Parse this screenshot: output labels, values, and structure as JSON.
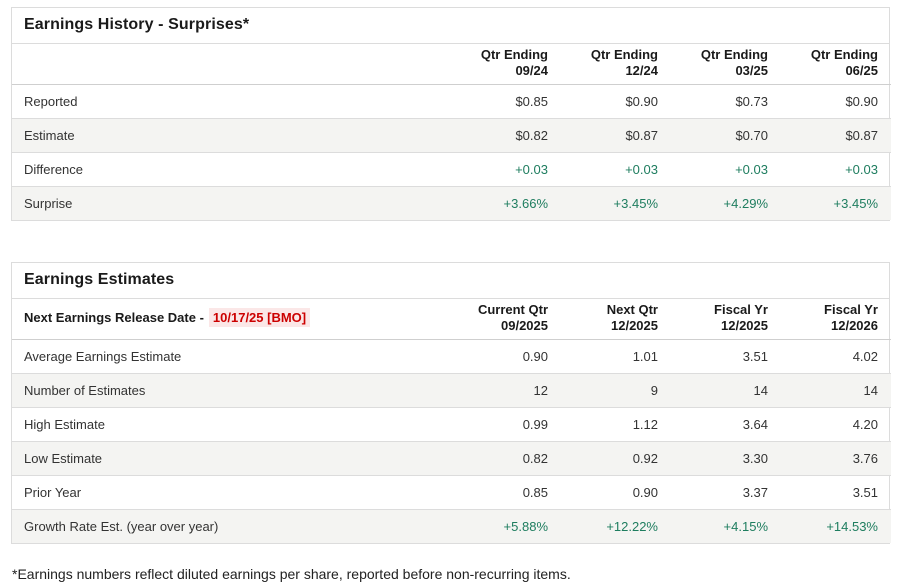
{
  "colors": {
    "green": "#1e7d5f",
    "red": "#cc0000",
    "red_bg": "#fbe7e7",
    "row_alt": "#f4f4f2",
    "border": "#dcdcdc"
  },
  "history": {
    "title": "Earnings History - Surprises*",
    "columns": [
      {
        "line1": "Qtr Ending",
        "line2": "09/24"
      },
      {
        "line1": "Qtr Ending",
        "line2": "12/24"
      },
      {
        "line1": "Qtr Ending",
        "line2": "03/25"
      },
      {
        "line1": "Qtr Ending",
        "line2": "06/25"
      }
    ],
    "rows": [
      {
        "label": "Reported",
        "values": [
          "$0.85",
          "$0.90",
          "$0.73",
          "$0.90"
        ],
        "green": false
      },
      {
        "label": "Estimate",
        "values": [
          "$0.82",
          "$0.87",
          "$0.70",
          "$0.87"
        ],
        "green": false
      },
      {
        "label": "Difference",
        "values": [
          "+0.03",
          "+0.03",
          "+0.03",
          "+0.03"
        ],
        "green": true
      },
      {
        "label": "Surprise",
        "values": [
          "+3.66%",
          "+3.45%",
          "+4.29%",
          "+3.45%"
        ],
        "green": true
      }
    ]
  },
  "estimates": {
    "title": "Earnings Estimates",
    "release_label": "Next Earnings Release Date -",
    "release_date": "10/17/25 [BMO]",
    "columns": [
      {
        "line1": "Current Qtr",
        "line2": "09/2025"
      },
      {
        "line1": "Next Qtr",
        "line2": "12/2025"
      },
      {
        "line1": "Fiscal Yr",
        "line2": "12/2025"
      },
      {
        "line1": "Fiscal Yr",
        "line2": "12/2026"
      }
    ],
    "rows": [
      {
        "label": "Average Earnings Estimate",
        "values": [
          "0.90",
          "1.01",
          "3.51",
          "4.02"
        ],
        "green": false
      },
      {
        "label": "Number of Estimates",
        "values": [
          "12",
          "9",
          "14",
          "14"
        ],
        "green": false
      },
      {
        "label": "High Estimate",
        "values": [
          "0.99",
          "1.12",
          "3.64",
          "4.20"
        ],
        "green": false
      },
      {
        "label": "Low Estimate",
        "values": [
          "0.82",
          "0.92",
          "3.30",
          "3.76"
        ],
        "green": false
      },
      {
        "label": "Prior Year",
        "values": [
          "0.85",
          "0.90",
          "3.37",
          "3.51"
        ],
        "green": false
      },
      {
        "label": "Growth Rate Est. (year over year)",
        "values": [
          "+5.88%",
          "+12.22%",
          "+4.15%",
          "+14.53%"
        ],
        "green": true
      }
    ]
  },
  "footnote": "*Earnings numbers reflect diluted earnings per share, reported before non-recurring items."
}
